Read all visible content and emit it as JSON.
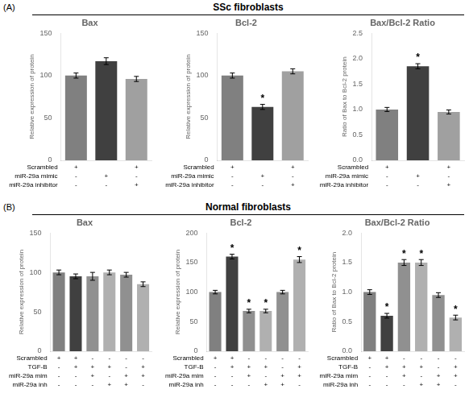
{
  "chart_data": [
    {
      "type": "bar",
      "title": "Bax",
      "y_label": "Relative expression of protein",
      "categories": [
        null,
        null,
        null
      ],
      "values": [
        100,
        117,
        96
      ],
      "errors": [
        3,
        4,
        3
      ],
      "colors": [
        "#808080",
        "#404040",
        "#a0a0a0"
      ],
      "ylim": [
        0,
        150
      ],
      "yticks": [
        0,
        50,
        100,
        150
      ],
      "grid": false,
      "annotations": [
        {
          "kind": "panel",
          "label": "(A)",
          "text": "SSc fibroblasts"
        },
        {
          "kind": "condition",
          "text": "Scrambled",
          "cells": [
            "+",
            null,
            "+"
          ]
        },
        {
          "kind": "condition",
          "text": "miR-29a mimic",
          "cells": [
            "-",
            "+",
            "-"
          ]
        },
        {
          "kind": "condition",
          "text": "miR-29a inhibitor",
          "cells": [
            "-",
            "-",
            "+"
          ]
        }
      ]
    },
    {
      "type": "bar",
      "title": "Bcl-2",
      "y_label": "Relative expression of protein",
      "categories": [
        null,
        null,
        null
      ],
      "values": [
        100,
        63,
        105
      ],
      "errors": [
        3,
        3,
        3
      ],
      "colors": [
        "#808080",
        "#404040",
        "#a0a0a0"
      ],
      "ylim": [
        0,
        150
      ],
      "yticks": [
        0,
        50,
        100,
        150
      ],
      "grid": false,
      "annotations": [
        {
          "kind": "star",
          "text": "*",
          "bar": 1
        },
        {
          "kind": "condition",
          "text": "Scrambled",
          "cells": [
            "+",
            null,
            "+"
          ]
        },
        {
          "kind": "condition",
          "text": "miR-29a mimic",
          "cells": [
            "-",
            "+",
            "-"
          ]
        },
        {
          "kind": "condition",
          "text": "miR-29a inhibitor",
          "cells": [
            "-",
            "-",
            "+"
          ]
        }
      ]
    },
    {
      "type": "bar",
      "title": "Bax/Bcl-2 Ratio",
      "y_label": "Ratio of Bax to Bcl-2 protein",
      "categories": [
        null,
        null,
        null
      ],
      "values": [
        1.0,
        1.85,
        0.95
      ],
      "errors": [
        0.04,
        0.05,
        0.04
      ],
      "colors": [
        "#808080",
        "#404040",
        "#a0a0a0"
      ],
      "ylim": [
        0.0,
        2.5
      ],
      "yticks": [
        {
          "value": 0.0,
          "label": "0.0"
        },
        0.5,
        {
          "value": 1.0,
          "label": "1.0"
        },
        1.5,
        {
          "value": 2.0,
          "label": "2.0"
        },
        2.5
      ],
      "grid": false,
      "annotations": [
        {
          "kind": "star",
          "text": "*",
          "bar": 1
        },
        {
          "kind": "condition",
          "text": "Scrambled",
          "cells": [
            "+",
            null,
            "+"
          ]
        },
        {
          "kind": "condition",
          "text": "miR-29a mimic",
          "cells": [
            "-",
            "+",
            "-"
          ]
        },
        {
          "kind": "condition",
          "text": "miR-29a inhibitor",
          "cells": [
            "-",
            "-",
            "+"
          ]
        }
      ]
    },
    {
      "type": "bar",
      "title": "Bax",
      "y_label": "Relative expression of protein",
      "categories": [
        null,
        null,
        null,
        null,
        null,
        null
      ],
      "values": [
        100,
        95,
        95,
        100,
        97,
        85
      ],
      "errors": [
        3,
        3,
        5,
        3,
        3,
        3
      ],
      "colors": [
        "#808080",
        "#404040",
        "#909090",
        "#b0b0b0",
        "#909090",
        "#b0b0b0"
      ],
      "ylim": [
        0,
        150
      ],
      "yticks": [
        0,
        50,
        100,
        150
      ],
      "grid": false,
      "annotations": [
        {
          "kind": "panel",
          "label": "(B)",
          "text": "Normal fibroblasts"
        },
        {
          "kind": "condition",
          "text": "Scrambled",
          "cells": [
            "+",
            "+",
            "-",
            "-",
            "-",
            "-"
          ]
        },
        {
          "kind": "condition",
          "text": "TGF-B",
          "cells": [
            "-",
            "+",
            "+",
            "+",
            "-",
            "+"
          ]
        },
        {
          "kind": "condition",
          "text": "miR-29a mim",
          "cells": [
            "-",
            "-",
            "+",
            "-",
            "+",
            "+"
          ]
        },
        {
          "kind": "condition",
          "text": "miR-29a inh",
          "cells": [
            "-",
            "-",
            "-",
            "+",
            "+",
            "-"
          ]
        }
      ]
    },
    {
      "type": "bar",
      "title": "Bcl-2",
      "y_label": "Relative expression of protein",
      "categories": [
        null,
        null,
        null,
        null,
        null,
        null
      ],
      "values": [
        100,
        160,
        68,
        68,
        100,
        155
      ],
      "errors": [
        3,
        4,
        3,
        3,
        3,
        5
      ],
      "colors": [
        "#808080",
        "#404040",
        "#909090",
        "#b0b0b0",
        "#909090",
        "#b0b0b0"
      ],
      "ylim": [
        0,
        200
      ],
      "yticks": [
        0,
        50,
        100,
        150,
        200
      ],
      "grid": false,
      "annotations": [
        {
          "kind": "star",
          "text": "*",
          "bar": 1
        },
        {
          "kind": "star",
          "text": "*",
          "bar": 2
        },
        {
          "kind": "star",
          "text": "*",
          "bar": 3
        },
        {
          "kind": "star",
          "text": "*",
          "bar": 5
        },
        {
          "kind": "condition",
          "text": "Scrambled",
          "cells": [
            "+",
            "+",
            "-",
            "-",
            "-",
            "-"
          ]
        },
        {
          "kind": "condition",
          "text": "TGF-B",
          "cells": [
            "-",
            "+",
            "+",
            "+",
            "-",
            "+"
          ]
        },
        {
          "kind": "condition",
          "text": "miR-29a mim",
          "cells": [
            "-",
            "-",
            "+",
            "-",
            "+",
            "+"
          ]
        },
        {
          "kind": "condition",
          "text": "miR-29a inh",
          "cells": [
            "-",
            "-",
            "-",
            "+",
            "+",
            "-"
          ]
        }
      ]
    },
    {
      "type": "bar",
      "title": "Bax/Bcl-2 Ratio",
      "y_label": "Ratio of Bax to Bcl-2 protein",
      "categories": [
        null,
        null,
        null,
        null,
        null,
        null
      ],
      "values": [
        1.0,
        0.6,
        1.5,
        1.5,
        0.95,
        0.57
      ],
      "errors": [
        0.04,
        0.04,
        0.05,
        0.05,
        0.04,
        0.04
      ],
      "colors": [
        "#808080",
        "#404040",
        "#909090",
        "#b0b0b0",
        "#909090",
        "#b0b0b0"
      ],
      "ylim": [
        0.0,
        2.0
      ],
      "yticks": [
        {
          "value": 0.0,
          "label": "0.0"
        },
        0.5,
        {
          "value": 1.0,
          "label": "1.0"
        },
        1.5,
        {
          "value": 2.0,
          "label": "2.0"
        }
      ],
      "grid": false,
      "annotations": [
        {
          "kind": "star",
          "text": "*",
          "bar": 1
        },
        {
          "kind": "star",
          "text": "*",
          "bar": 2
        },
        {
          "kind": "star",
          "text": "*",
          "bar": 3
        },
        {
          "kind": "star",
          "text": "*",
          "bar": 5
        },
        {
          "kind": "condition",
          "text": "Scrambled",
          "cells": [
            "+",
            "+",
            "-",
            "-",
            "-",
            "-"
          ]
        },
        {
          "kind": "condition",
          "text": "TGF-B",
          "cells": [
            "-",
            "+",
            "+",
            "+",
            "-",
            "+"
          ]
        },
        {
          "kind": "condition",
          "text": "miR-29a mim",
          "cells": [
            "-",
            "-",
            "+",
            "-",
            "+",
            "+"
          ]
        },
        {
          "kind": "condition",
          "text": "miR-29a inh",
          "cells": [
            "-",
            "-",
            "-",
            "+",
            "+",
            "-"
          ]
        }
      ]
    }
  ]
}
